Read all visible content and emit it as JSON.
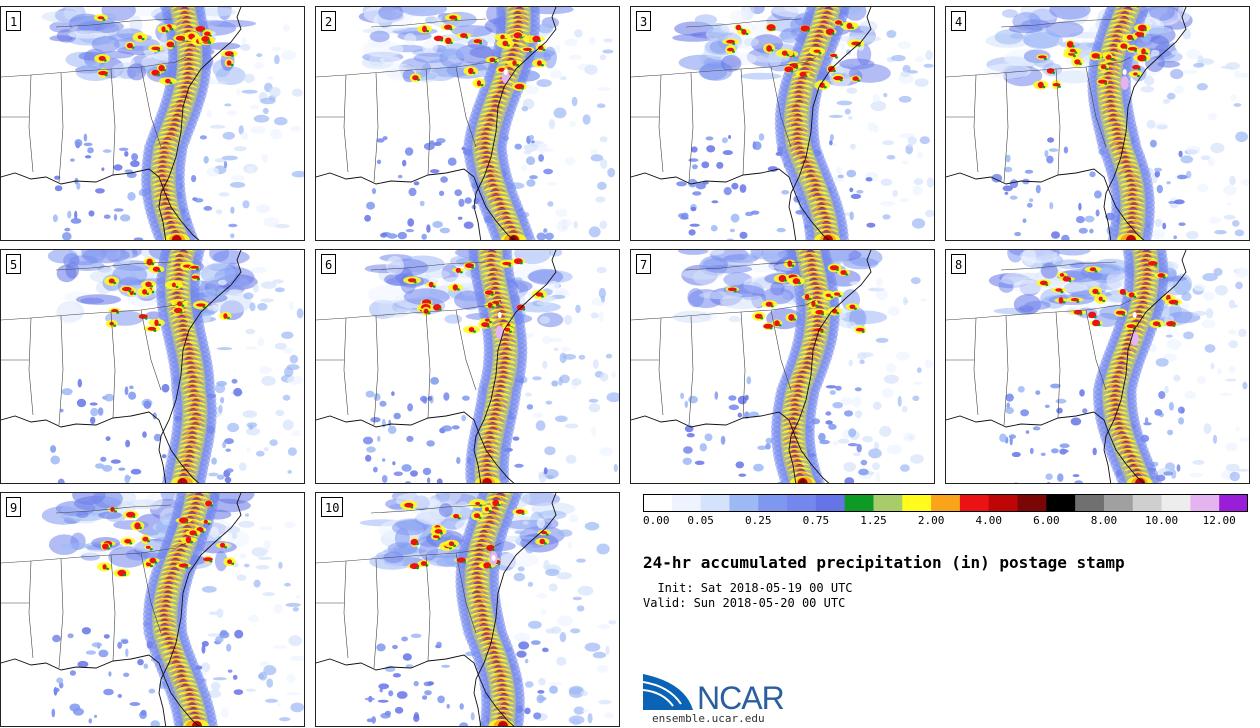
{
  "members": [
    "1",
    "2",
    "3",
    "4",
    "5",
    "6",
    "7",
    "8",
    "9",
    "10"
  ],
  "colorbar": {
    "colors": [
      "#ffffff",
      "#eef4ff",
      "#d4e2fb",
      "#9cb8f5",
      "#7e98f0",
      "#7387ec",
      "#6574e6",
      "#0d9b26",
      "#a8cc6a",
      "#fffb1c",
      "#f9a41a",
      "#ea1212",
      "#be0606",
      "#7a0606",
      "#000000",
      "#707070",
      "#a0a0a0",
      "#cfcfcf",
      "#ededed",
      "#e4b4f0",
      "#9a1ed8"
    ],
    "labels": [
      "0.00",
      "0.05",
      "0.25",
      "0.75",
      "1.25",
      "2.00",
      "4.00",
      "6.00",
      "8.00",
      "10.00",
      "12.00"
    ]
  },
  "title": "24-hr accumulated precipitation (in) postage stamp",
  "init": "  Init: Sat 2018-05-19 00 UTC",
  "valid": "Valid: Sun 2018-05-20 00 UTC",
  "logo": {
    "text": "NCAR",
    "url": "ensemble.ucar.edu",
    "icon": "ncar-logo-icon",
    "color": "#2a5e9e"
  }
}
